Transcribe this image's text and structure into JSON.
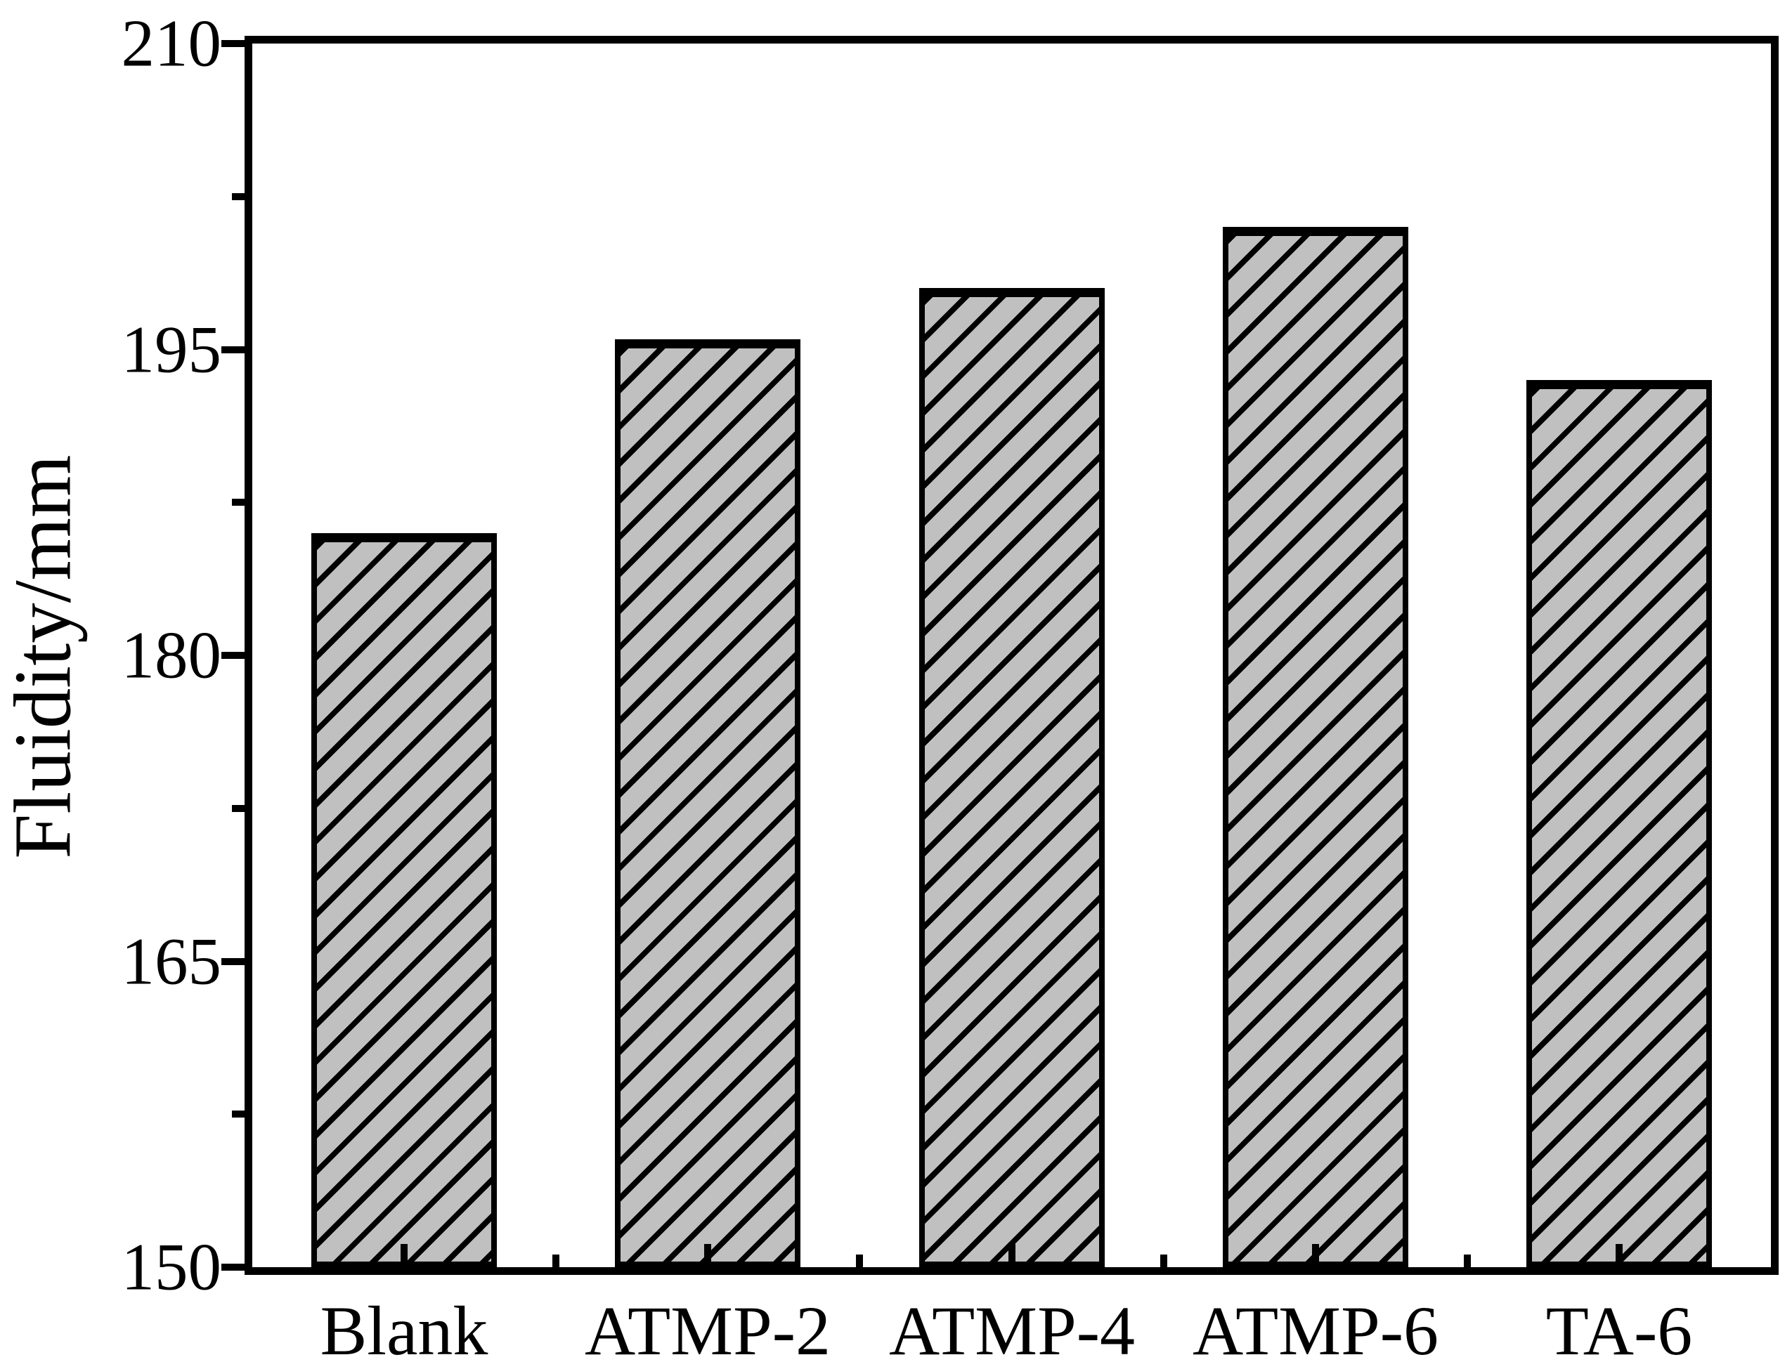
{
  "chart_data": {
    "type": "bar",
    "categories": [
      "Blank",
      "ATMP-2",
      "ATMP-4",
      "ATMP-6",
      "TA-6"
    ],
    "values": [
      186,
      195.5,
      198,
      201,
      193.5
    ],
    "title": "",
    "xlabel": "",
    "ylabel": "Fluidity/mm",
    "ylim": [
      150,
      210
    ],
    "y_major_ticks": [
      {
        "value": 210,
        "label": "210"
      },
      {
        "value": 195,
        "label": "195"
      },
      {
        "value": 180,
        "label": "180"
      },
      {
        "value": 165,
        "label": "165"
      },
      {
        "value": 150,
        "label": "150"
      }
    ],
    "y_minor_tick_values": [
      202.5,
      187.5,
      172.5,
      157.5
    ],
    "grid": "off",
    "legend": "none",
    "bar_style": {
      "fill_color": "#c0c0c0",
      "hatch": "diagonal-forward-slash",
      "outline_color": "#000000"
    },
    "axis_color": "#000000",
    "background_color": "#ffffff"
  }
}
